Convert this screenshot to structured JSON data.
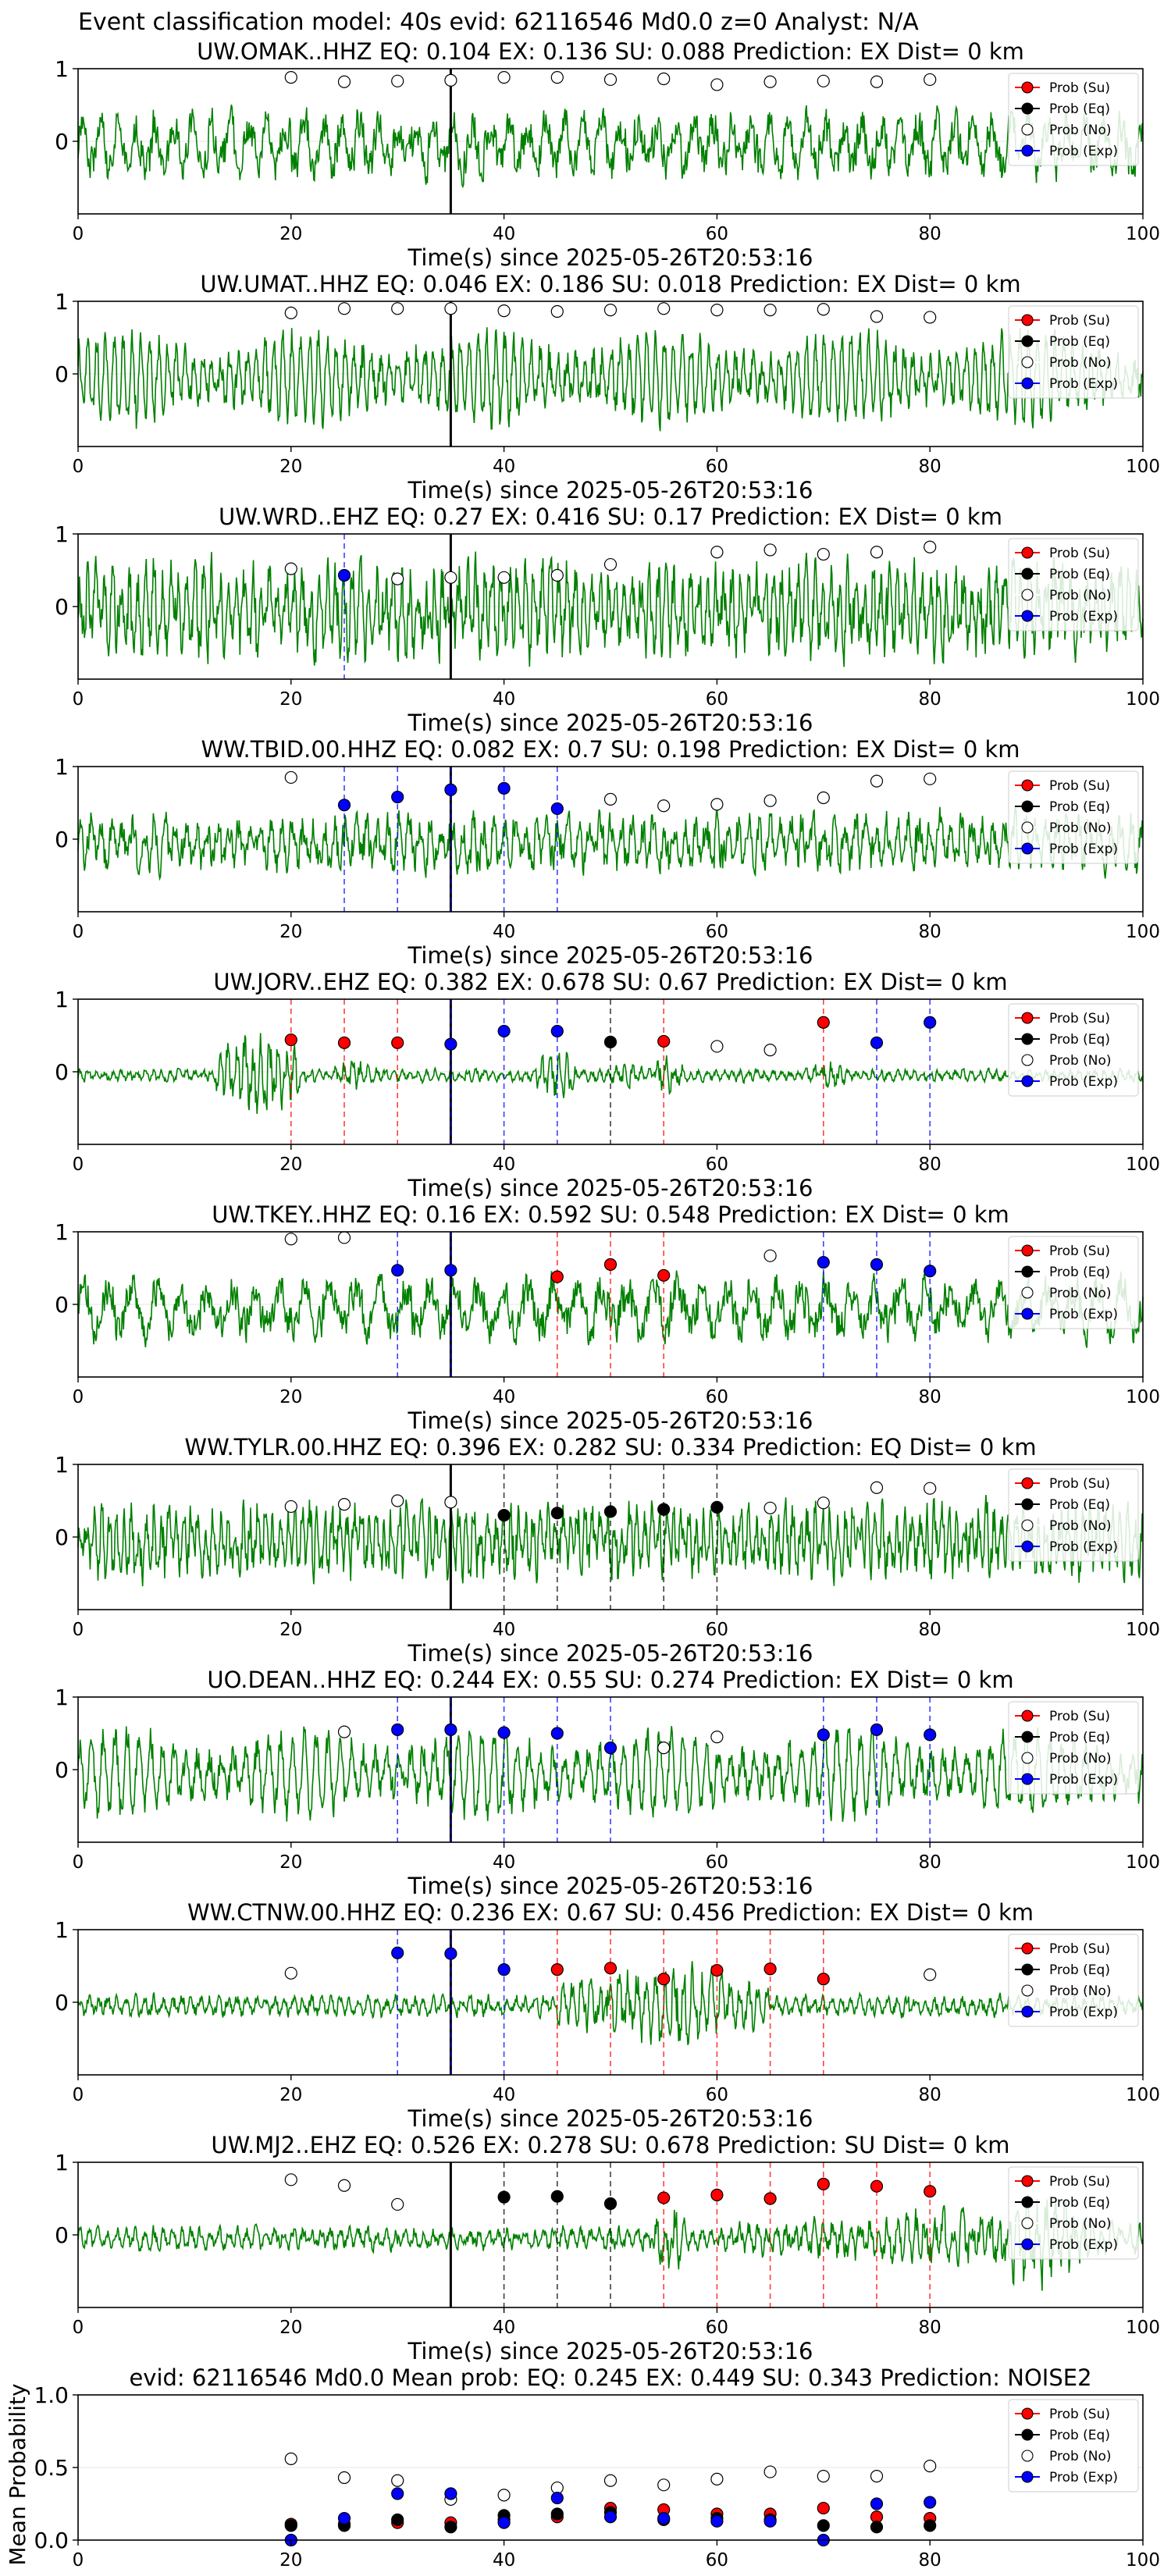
{
  "figure_title": "Event classification model: 40s evid: 62116546 Md0.0 z=0 Analyst: N/A",
  "xlabel": "Time(s) since 2025-05-26T20:53:16",
  "legend": {
    "su": "Prob (Su)",
    "eq": "Prob (Eq)",
    "no": "Prob (No)",
    "exp": "Prob (Exp)"
  },
  "colors": {
    "waveform": "#008000",
    "su": "#ff0000",
    "eq": "#000000",
    "no": "#ffffff",
    "exp": "#0000ff"
  },
  "chart_data": [
    {
      "type": "line",
      "title": "UW.OMAK..HHZ   EQ: 0.104   EX: 0.136   SU: 0.088   Prediction: EX    Dist= 0 km",
      "xlim": [
        0,
        100
      ],
      "ylim": [
        -1,
        1
      ],
      "xticks": [
        "0",
        "20",
        "40",
        "60",
        "80",
        "100"
      ],
      "yticks": [
        "1",
        "0"
      ],
      "origin_time": 35,
      "amp": 0.62,
      "freq": 4,
      "character": "noise",
      "points": [
        {
          "t": 20,
          "p": 0.88,
          "c": "no"
        },
        {
          "t": 25,
          "p": 0.82,
          "c": "no"
        },
        {
          "t": 30,
          "p": 0.83,
          "c": "no"
        },
        {
          "t": 35,
          "p": 0.84,
          "c": "no"
        },
        {
          "t": 40,
          "p": 0.88,
          "c": "no"
        },
        {
          "t": 45,
          "p": 0.88,
          "c": "no"
        },
        {
          "t": 50,
          "p": 0.85,
          "c": "no"
        },
        {
          "t": 55,
          "p": 0.86,
          "c": "no"
        },
        {
          "t": 60,
          "p": 0.78,
          "c": "no"
        },
        {
          "t": 65,
          "p": 0.82,
          "c": "no"
        },
        {
          "t": 70,
          "p": 0.83,
          "c": "no"
        },
        {
          "t": 75,
          "p": 0.82,
          "c": "no"
        },
        {
          "t": 80,
          "p": 0.85,
          "c": "no"
        }
      ]
    },
    {
      "type": "line",
      "title": "UW.UMAT..HHZ   EQ: 0.046   EX: 0.186   SU: 0.018   Prediction: EX    Dist= 0 km",
      "xlim": [
        0,
        100
      ],
      "ylim": [
        -1,
        1
      ],
      "xticks": [
        "0",
        "20",
        "40",
        "60",
        "80",
        "100"
      ],
      "yticks": [
        "1",
        "0"
      ],
      "origin_time": 35,
      "amp": 0.75,
      "freq": 1.2,
      "character": "wave",
      "points": [
        {
          "t": 20,
          "p": 0.84,
          "c": "no"
        },
        {
          "t": 25,
          "p": 0.9,
          "c": "no"
        },
        {
          "t": 30,
          "p": 0.9,
          "c": "no"
        },
        {
          "t": 35,
          "p": 0.9,
          "c": "no"
        },
        {
          "t": 40,
          "p": 0.87,
          "c": "no"
        },
        {
          "t": 45,
          "p": 0.86,
          "c": "no"
        },
        {
          "t": 50,
          "p": 0.88,
          "c": "no"
        },
        {
          "t": 55,
          "p": 0.9,
          "c": "no"
        },
        {
          "t": 60,
          "p": 0.88,
          "c": "no"
        },
        {
          "t": 65,
          "p": 0.88,
          "c": "no"
        },
        {
          "t": 70,
          "p": 0.89,
          "c": "no"
        },
        {
          "t": 75,
          "p": 0.79,
          "c": "no"
        },
        {
          "t": 80,
          "p": 0.78,
          "c": "no"
        }
      ]
    },
    {
      "type": "line",
      "title": "UW.WRD..EHZ   EQ: 0.27  EX: 0.416  SU: 0.17   Prediction: EX    Dist= 0 km",
      "xlim": [
        0,
        100
      ],
      "ylim": [
        -1,
        1
      ],
      "xticks": [
        "0",
        "20",
        "40",
        "60",
        "80",
        "100"
      ],
      "yticks": [
        "1",
        "0"
      ],
      "origin_time": 35,
      "amp": 0.9,
      "freq": 9,
      "character": "noise",
      "points": [
        {
          "t": 20,
          "p": 0.52,
          "c": "no"
        },
        {
          "t": 25,
          "p": 0.43,
          "c": "exp"
        },
        {
          "t": 30,
          "p": 0.38,
          "c": "no"
        },
        {
          "t": 35,
          "p": 0.4,
          "c": "no"
        },
        {
          "t": 40,
          "p": 0.4,
          "c": "no"
        },
        {
          "t": 45,
          "p": 0.43,
          "c": "no"
        },
        {
          "t": 50,
          "p": 0.58,
          "c": "no"
        },
        {
          "t": 60,
          "p": 0.75,
          "c": "no"
        },
        {
          "t": 65,
          "p": 0.78,
          "c": "no"
        },
        {
          "t": 70,
          "p": 0.72,
          "c": "no"
        },
        {
          "t": 75,
          "p": 0.75,
          "c": "no"
        },
        {
          "t": 80,
          "p": 0.82,
          "c": "no"
        }
      ]
    },
    {
      "type": "line",
      "title": "WW.TBID.00.HHZ   EQ: 0.082  EX: 0.7  SU: 0.198   Prediction: EX    Dist= 0 km",
      "xlim": [
        0,
        100
      ],
      "ylim": [
        -1,
        1
      ],
      "xticks": [
        "0",
        "20",
        "40",
        "60",
        "80",
        "100"
      ],
      "yticks": [
        "1",
        "0"
      ],
      "origin_time": 35,
      "amp": 0.55,
      "freq": 7,
      "character": "noise",
      "points": [
        {
          "t": 20,
          "p": 0.85,
          "c": "no"
        },
        {
          "t": 25,
          "p": 0.47,
          "c": "exp"
        },
        {
          "t": 30,
          "p": 0.58,
          "c": "exp"
        },
        {
          "t": 35,
          "p": 0.68,
          "c": "exp"
        },
        {
          "t": 40,
          "p": 0.7,
          "c": "exp"
        },
        {
          "t": 45,
          "p": 0.42,
          "c": "exp"
        },
        {
          "t": 50,
          "p": 0.55,
          "c": "no"
        },
        {
          "t": 55,
          "p": 0.46,
          "c": "no"
        },
        {
          "t": 60,
          "p": 0.48,
          "c": "no"
        },
        {
          "t": 65,
          "p": 0.53,
          "c": "no"
        },
        {
          "t": 70,
          "p": 0.57,
          "c": "no"
        },
        {
          "t": 75,
          "p": 0.8,
          "c": "no"
        },
        {
          "t": 80,
          "p": 0.83,
          "c": "no"
        }
      ]
    },
    {
      "type": "line",
      "title": "UW.JORV..EHZ   EQ: 0.382  EX: 0.678   SU: 0.67   Prediction: EX    Dist= 0 km",
      "xlim": [
        0,
        100
      ],
      "ylim": [
        -1,
        1
      ],
      "xticks": [
        "0",
        "20",
        "40",
        "60",
        "80",
        "100"
      ],
      "yticks": [
        "1",
        "0"
      ],
      "origin_time": 35,
      "amp": 0.12,
      "freq": 9,
      "character": "bursts",
      "bursts": [
        [
          13,
          21,
          0.9
        ],
        [
          24,
          28,
          0.35
        ],
        [
          43,
          47,
          0.5
        ],
        [
          50,
          53,
          0.3
        ],
        [
          54,
          57,
          0.45
        ],
        [
          69,
          72,
          0.35
        ]
      ],
      "points": [
        {
          "t": 20,
          "p": 0.44,
          "c": "su"
        },
        {
          "t": 25,
          "p": 0.4,
          "c": "su"
        },
        {
          "t": 30,
          "p": 0.4,
          "c": "su"
        },
        {
          "t": 35,
          "p": 0.38,
          "c": "exp"
        },
        {
          "t": 40,
          "p": 0.56,
          "c": "exp"
        },
        {
          "t": 45,
          "p": 0.56,
          "c": "exp"
        },
        {
          "t": 50,
          "p": 0.41,
          "c": "eq"
        },
        {
          "t": 55,
          "p": 0.42,
          "c": "su"
        },
        {
          "t": 60,
          "p": 0.35,
          "c": "no"
        },
        {
          "t": 65,
          "p": 0.3,
          "c": "no"
        },
        {
          "t": 70,
          "p": 0.68,
          "c": "su"
        },
        {
          "t": 75,
          "p": 0.4,
          "c": "exp"
        },
        {
          "t": 80,
          "p": 0.68,
          "c": "exp"
        }
      ]
    },
    {
      "type": "line",
      "title": "UW.TKEY..HHZ   EQ: 0.16  EX: 0.592  SU: 0.548   Prediction: EX    Dist= 0 km",
      "xlim": [
        0,
        100
      ],
      "ylim": [
        -1,
        1
      ],
      "xticks": [
        "0",
        "20",
        "40",
        "60",
        "80",
        "100"
      ],
      "yticks": [
        "1",
        "0"
      ],
      "origin_time": 35,
      "amp": 0.6,
      "freq": 3,
      "character": "noise",
      "points": [
        {
          "t": 20,
          "p": 0.9,
          "c": "no"
        },
        {
          "t": 25,
          "p": 0.92,
          "c": "no"
        },
        {
          "t": 30,
          "p": 0.47,
          "c": "exp"
        },
        {
          "t": 35,
          "p": 0.47,
          "c": "exp"
        },
        {
          "t": 45,
          "p": 0.38,
          "c": "su"
        },
        {
          "t": 50,
          "p": 0.55,
          "c": "su"
        },
        {
          "t": 55,
          "p": 0.4,
          "c": "su"
        },
        {
          "t": 65,
          "p": 0.67,
          "c": "no"
        },
        {
          "t": 70,
          "p": 0.58,
          "c": "exp"
        },
        {
          "t": 75,
          "p": 0.55,
          "c": "exp"
        },
        {
          "t": 80,
          "p": 0.46,
          "c": "exp"
        }
      ]
    },
    {
      "type": "line",
      "title": "WW.TYLR.00.HHZ   EQ: 0.396  EX: 0.282  SU: 0.334   Prediction: EQ    Dist= 0 km",
      "xlim": [
        0,
        100
      ],
      "ylim": [
        -1,
        1
      ],
      "xticks": [
        "0",
        "20",
        "40",
        "60",
        "80",
        "100"
      ],
      "yticks": [
        "1",
        "0"
      ],
      "origin_time": 35,
      "amp": 0.7,
      "freq": 10,
      "character": "noise",
      "points": [
        {
          "t": 20,
          "p": 0.42,
          "c": "no"
        },
        {
          "t": 25,
          "p": 0.45,
          "c": "no"
        },
        {
          "t": 30,
          "p": 0.5,
          "c": "no"
        },
        {
          "t": 35,
          "p": 0.48,
          "c": "no"
        },
        {
          "t": 40,
          "p": 0.3,
          "c": "eq"
        },
        {
          "t": 45,
          "p": 0.33,
          "c": "eq"
        },
        {
          "t": 50,
          "p": 0.35,
          "c": "eq"
        },
        {
          "t": 55,
          "p": 0.38,
          "c": "eq"
        },
        {
          "t": 60,
          "p": 0.41,
          "c": "eq"
        },
        {
          "t": 65,
          "p": 0.4,
          "c": "no"
        },
        {
          "t": 70,
          "p": 0.47,
          "c": "no"
        },
        {
          "t": 75,
          "p": 0.68,
          "c": "no"
        },
        {
          "t": 80,
          "p": 0.67,
          "c": "no"
        }
      ]
    },
    {
      "type": "line",
      "title": "UO.DEAN..HHZ   EQ: 0.244  EX: 0.55  SU: 0.274   Prediction: EX    Dist= 0 km",
      "xlim": [
        0,
        100
      ],
      "ylim": [
        -1,
        1
      ],
      "xticks": [
        "0",
        "20",
        "40",
        "60",
        "80",
        "100"
      ],
      "yticks": [
        "1",
        "0"
      ],
      "origin_time": 35,
      "amp": 0.7,
      "freq": 0.9,
      "character": "wave",
      "points": [
        {
          "t": 25,
          "p": 0.52,
          "c": "no"
        },
        {
          "t": 30,
          "p": 0.55,
          "c": "exp"
        },
        {
          "t": 35,
          "p": 0.55,
          "c": "exp"
        },
        {
          "t": 40,
          "p": 0.51,
          "c": "exp"
        },
        {
          "t": 45,
          "p": 0.5,
          "c": "exp"
        },
        {
          "t": 50,
          "p": 0.3,
          "c": "exp"
        },
        {
          "t": 55,
          "p": 0.3,
          "c": "no"
        },
        {
          "t": 60,
          "p": 0.45,
          "c": "no"
        },
        {
          "t": 70,
          "p": 0.48,
          "c": "exp"
        },
        {
          "t": 75,
          "p": 0.55,
          "c": "exp"
        },
        {
          "t": 80,
          "p": 0.48,
          "c": "exp"
        }
      ]
    },
    {
      "type": "line",
      "title": "WW.CTNW.00.HHZ   EQ: 0.236  EX: 0.67  SU: 0.456   Prediction: EX    Dist= 0 km",
      "xlim": [
        0,
        100
      ],
      "ylim": [
        -1,
        1
      ],
      "xticks": [
        "0",
        "20",
        "40",
        "60",
        "80",
        "100"
      ],
      "yticks": [
        "1",
        "0"
      ],
      "origin_time": 35,
      "amp": 0.2,
      "freq": 8,
      "character": "bursts",
      "bursts": [
        [
          45,
          65,
          0.75
        ],
        [
          54,
          60,
          0.95
        ]
      ],
      "points": [
        {
          "t": 20,
          "p": 0.4,
          "c": "no"
        },
        {
          "t": 30,
          "p": 0.68,
          "c": "exp"
        },
        {
          "t": 35,
          "p": 0.67,
          "c": "exp"
        },
        {
          "t": 40,
          "p": 0.45,
          "c": "exp"
        },
        {
          "t": 45,
          "p": 0.45,
          "c": "su"
        },
        {
          "t": 50,
          "p": 0.47,
          "c": "su"
        },
        {
          "t": 55,
          "p": 0.32,
          "c": "su"
        },
        {
          "t": 60,
          "p": 0.44,
          "c": "su"
        },
        {
          "t": 65,
          "p": 0.46,
          "c": "su"
        },
        {
          "t": 70,
          "p": 0.32,
          "c": "su"
        },
        {
          "t": 80,
          "p": 0.38,
          "c": "no"
        }
      ]
    },
    {
      "type": "line",
      "title": "UW.MJ2..EHZ   EQ: 0.526  EX: 0.278  SU: 0.678   Prediction: SU    Dist= 0 km",
      "xlim": [
        0,
        100
      ],
      "ylim": [
        -1,
        1
      ],
      "xticks": [
        "0",
        "20",
        "40",
        "60",
        "80",
        "100"
      ],
      "yticks": [
        "1",
        "0"
      ],
      "origin_time": 35,
      "amp": 0.22,
      "freq": 8,
      "character": "bursts",
      "bursts": [
        [
          54,
          57,
          0.75
        ],
        [
          62,
          100,
          0.55
        ],
        [
          85,
          95,
          0.95
        ]
      ],
      "points": [
        {
          "t": 20,
          "p": 0.76,
          "c": "no"
        },
        {
          "t": 25,
          "p": 0.68,
          "c": "no"
        },
        {
          "t": 30,
          "p": 0.42,
          "c": "no"
        },
        {
          "t": 40,
          "p": 0.52,
          "c": "eq"
        },
        {
          "t": 45,
          "p": 0.53,
          "c": "eq"
        },
        {
          "t": 50,
          "p": 0.43,
          "c": "eq"
        },
        {
          "t": 55,
          "p": 0.51,
          "c": "su"
        },
        {
          "t": 60,
          "p": 0.55,
          "c": "su"
        },
        {
          "t": 65,
          "p": 0.5,
          "c": "su"
        },
        {
          "t": 70,
          "p": 0.7,
          "c": "su"
        },
        {
          "t": 75,
          "p": 0.67,
          "c": "su"
        },
        {
          "t": 80,
          "p": 0.6,
          "c": "su"
        }
      ]
    },
    {
      "type": "scatter",
      "title": "evid: 62116546  Md0.0   Mean prob:   EQ: 0.245  EX: 0.449  SU: 0.343   Prediction: NOISE2",
      "xlim": [
        0,
        100
      ],
      "ylim": [
        0,
        1
      ],
      "xticks": [
        "0",
        "20",
        "40",
        "60",
        "80",
        "100"
      ],
      "yticks": [
        "0.0",
        "0.5",
        "1.0"
      ],
      "ylabel": "Mean Probability",
      "x": [
        20,
        25,
        30,
        35,
        40,
        45,
        50,
        55,
        60,
        65,
        70,
        75,
        80
      ],
      "series": [
        {
          "name": "Prob (Su)",
          "key": "su",
          "values": [
            0.11,
            0.11,
            0.12,
            0.12,
            0.14,
            0.16,
            0.22,
            0.21,
            0.18,
            0.18,
            0.22,
            0.16,
            0.15
          ]
        },
        {
          "name": "Prob (Eq)",
          "key": "eq",
          "values": [
            0.1,
            0.1,
            0.14,
            0.09,
            0.17,
            0.18,
            0.19,
            0.14,
            0.15,
            0.14,
            0.1,
            0.09,
            0.1
          ]
        },
        {
          "name": "Prob (No)",
          "key": "no",
          "values": [
            0.56,
            0.43,
            0.41,
            0.28,
            0.31,
            0.36,
            0.41,
            0.38,
            0.42,
            0.47,
            0.44,
            0.44,
            0.51
          ]
        },
        {
          "name": "Prob (Exp)",
          "key": "exp",
          "values": [
            0.0,
            0.15,
            0.32,
            0.32,
            0.12,
            0.29,
            0.16,
            0.15,
            0.13,
            0.13,
            0.0,
            0.25,
            0.26
          ]
        }
      ]
    }
  ]
}
